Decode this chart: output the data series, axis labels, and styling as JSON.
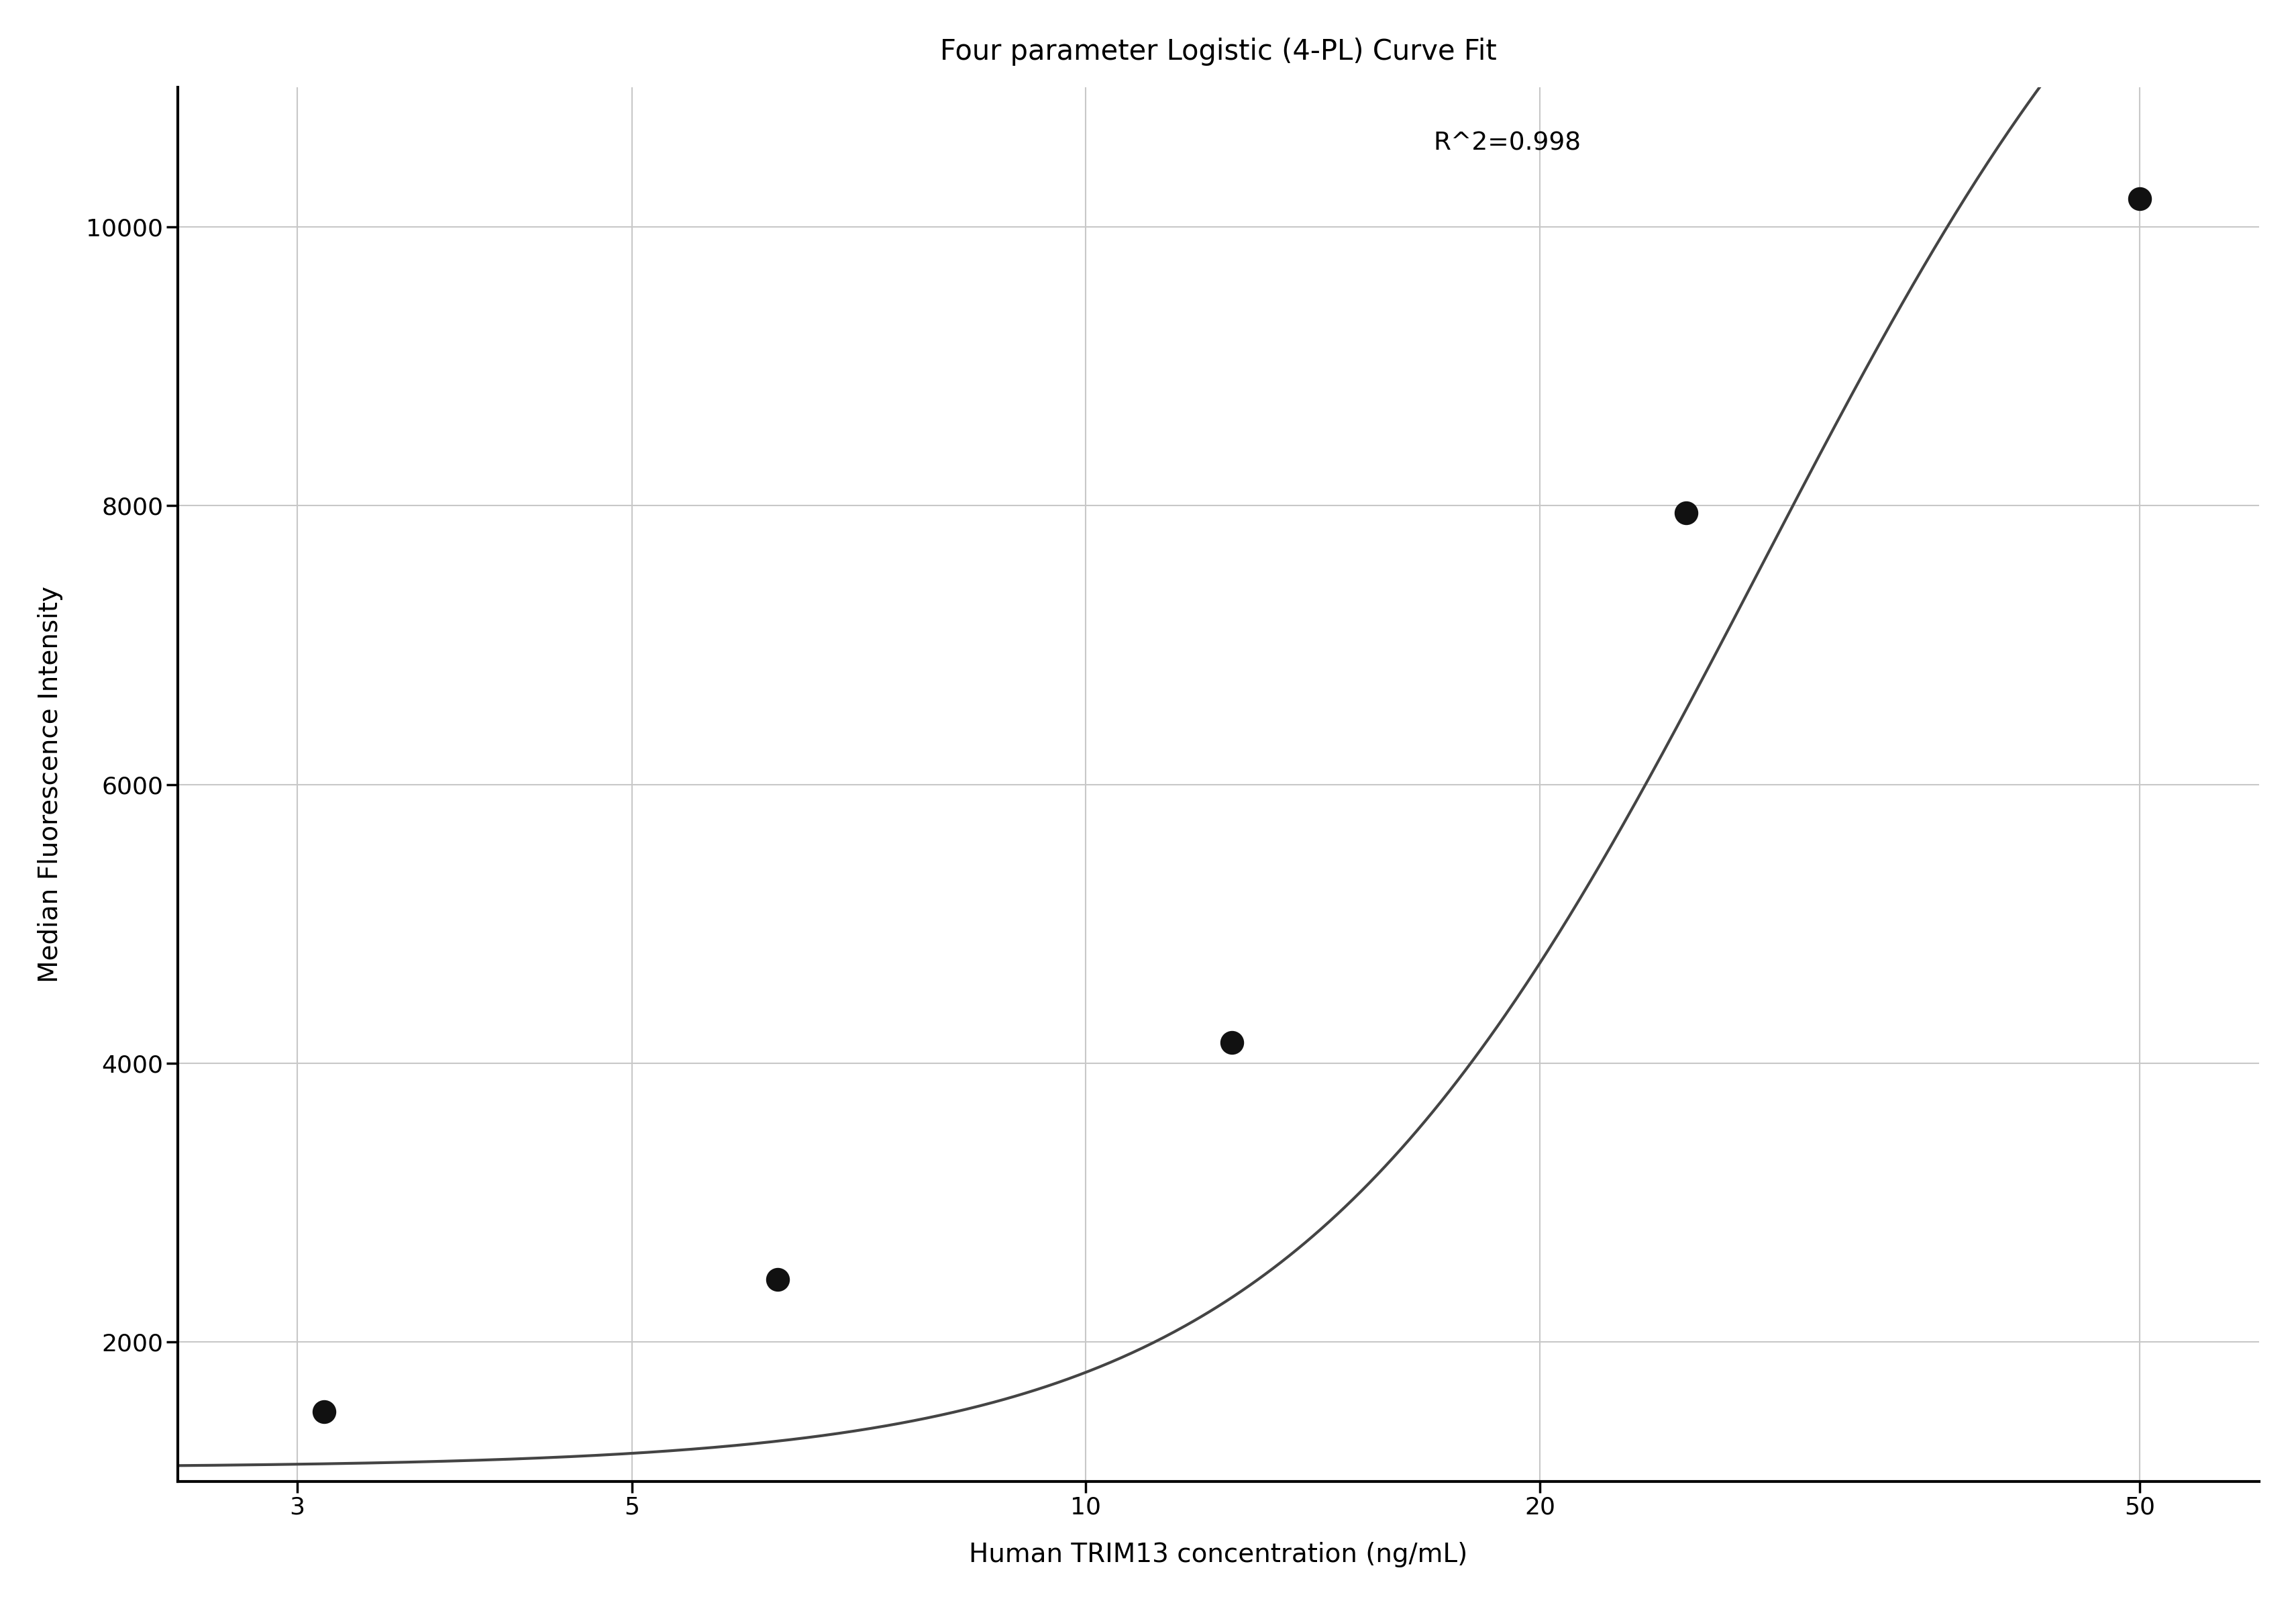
{
  "title": "Four parameter Logistic (4-PL) Curve Fit",
  "xlabel": "Human TRIM13 concentration (ng/mL)",
  "ylabel": "Median Fluorescence Intensity",
  "data_x": [
    3.125,
    6.25,
    12.5,
    25.0,
    50.0
  ],
  "data_y": [
    1500,
    2450,
    4150,
    7950,
    10200
  ],
  "r2_text": "R^2=0.998",
  "r2_x": 17,
  "r2_y": 10550,
  "xlim": [
    2.5,
    60
  ],
  "ylim": [
    1000,
    11000
  ],
  "xticks": [
    3,
    5,
    10,
    20,
    50
  ],
  "yticks": [
    2000,
    4000,
    6000,
    8000,
    10000
  ],
  "grid_color": "#c8c8c8",
  "line_color": "#444444",
  "dot_color": "#111111",
  "bg_color": "#ffffff",
  "title_fontsize": 30,
  "label_fontsize": 28,
  "tick_fontsize": 26,
  "annotation_fontsize": 27,
  "4pl_A": 1100,
  "4pl_D": 14000,
  "4pl_C": 28.0,
  "4pl_B": 2.8
}
